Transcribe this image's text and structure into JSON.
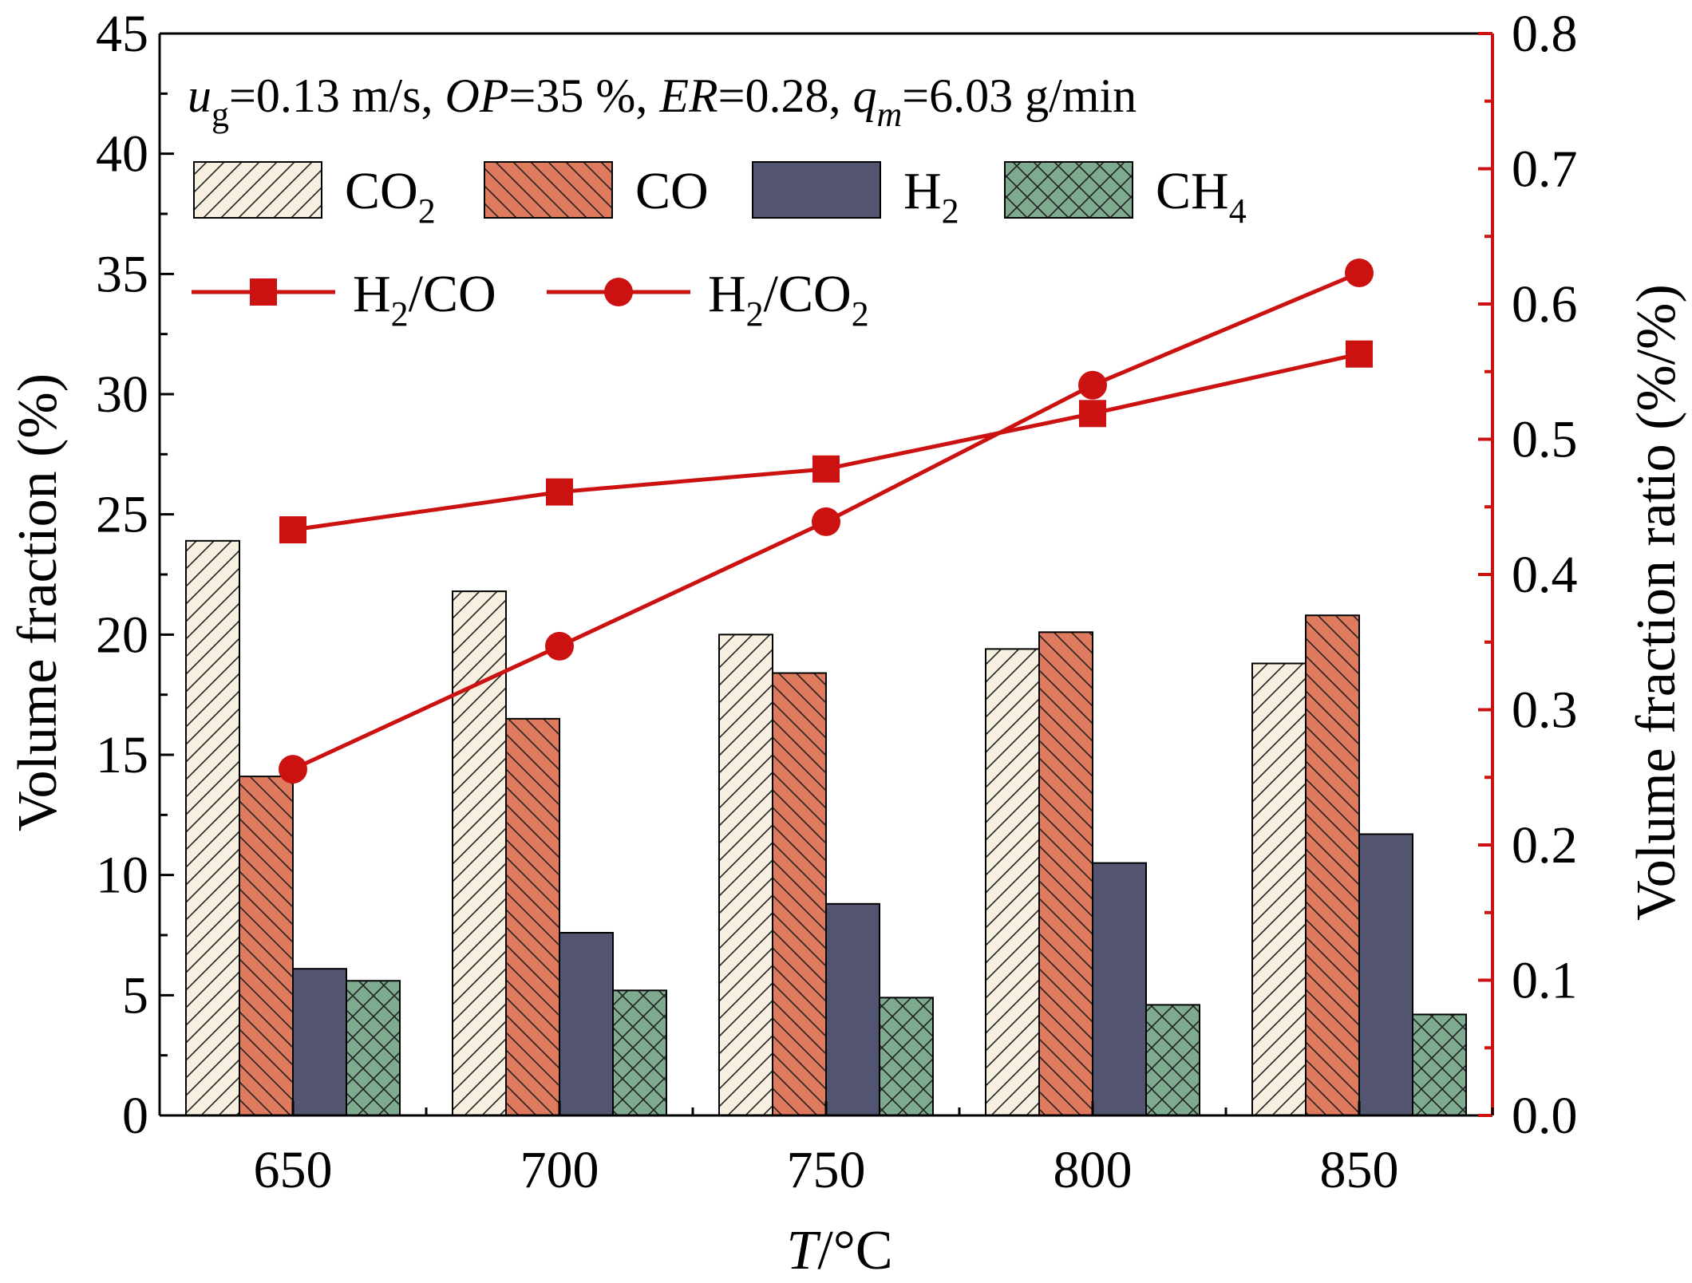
{
  "chart_data": {
    "type": "bar",
    "annotation": {
      "u_sym": "u",
      "u_sub": "g",
      "u_val": "=0.13 m/s, ",
      "op_sym": "OP",
      "op_val": "=35 %, ",
      "er_sym": "ER",
      "er_val": "=0.28, ",
      "q_sym": "q",
      "q_sub": "m",
      "q_val": "=6.03 g/min"
    },
    "xlabel": {
      "sym": "T",
      "unit": "/°C"
    },
    "ylabel": "Volume fraction (%)",
    "y2label": "Volume fraction ratio (%/%)",
    "categories": [
      "650",
      "700",
      "750",
      "800",
      "850"
    ],
    "ylim": [
      0,
      45
    ],
    "yticks": [
      0,
      5,
      10,
      15,
      20,
      25,
      30,
      35,
      40,
      45
    ],
    "ytick_labels": [
      "0",
      "5",
      "10",
      "15",
      "20",
      "25",
      "30",
      "35",
      "40",
      "45"
    ],
    "y2lim": [
      0.0,
      0.8
    ],
    "y2ticks": [
      0.0,
      0.1,
      0.2,
      0.3,
      0.4,
      0.5,
      0.6,
      0.7,
      0.8
    ],
    "y2tick_labels": [
      "0.0",
      "0.1",
      "0.2",
      "0.3",
      "0.4",
      "0.5",
      "0.6",
      "0.7",
      "0.8"
    ],
    "series": [
      {
        "name": "CO2",
        "main": "CO",
        "sub": "2",
        "pattern": "hatch-fwd",
        "fill": "#f7efdf",
        "values": [
          23.9,
          21.8,
          20.0,
          19.4,
          18.8
        ]
      },
      {
        "name": "CO",
        "main": "CO",
        "sub": "",
        "pattern": "hatch-back",
        "fill": "#e07a5e",
        "values": [
          14.1,
          16.5,
          18.4,
          20.1,
          20.8
        ]
      },
      {
        "name": "H2",
        "main": "H",
        "sub": "2",
        "pattern": "solid",
        "fill": "#525470",
        "values": [
          6.1,
          7.6,
          8.8,
          10.5,
          11.7
        ]
      },
      {
        "name": "CH4",
        "main": "CH",
        "sub": "4",
        "pattern": "crosshatch",
        "fill": "#7eaa90",
        "values": [
          5.6,
          5.2,
          4.9,
          4.6,
          4.2
        ]
      }
    ],
    "line_series": [
      {
        "name": "H2/CO",
        "parts": [
          "H",
          "2",
          "/CO",
          ""
        ],
        "marker": "square",
        "color": "#cc1111",
        "values": [
          0.433,
          0.461,
          0.478,
          0.519,
          0.563
        ]
      },
      {
        "name": "H2/CO2",
        "parts": [
          "H",
          "2",
          "/CO",
          "2"
        ],
        "marker": "circle",
        "color": "#cc1111",
        "values": [
          0.256,
          0.347,
          0.439,
          0.54,
          0.623
        ]
      }
    ]
  }
}
